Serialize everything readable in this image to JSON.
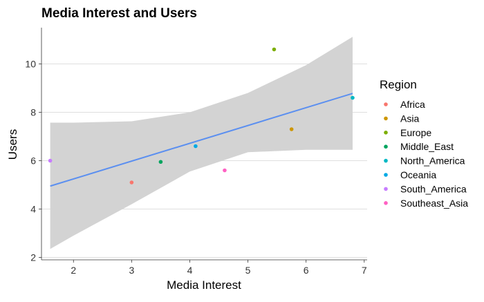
{
  "chart_data": {
    "type": "scatter",
    "title": "Media Interest and Users",
    "xlabel": "Media Interest",
    "ylabel": "Users",
    "xlim": [
      1.45,
      7.05
    ],
    "ylim": [
      1.9,
      11.5
    ],
    "xticks": [
      2,
      3,
      4,
      5,
      6,
      7
    ],
    "yticks": [
      2,
      4,
      6,
      8,
      10
    ],
    "grid": true,
    "legend_title": "Region",
    "legend_position": "right",
    "series": [
      {
        "name": "Africa",
        "color": "#F8766D",
        "points": [
          [
            3.0,
            5.1
          ]
        ]
      },
      {
        "name": "Asia",
        "color": "#CD9600",
        "points": [
          [
            5.75,
            7.3
          ]
        ]
      },
      {
        "name": "Europe",
        "color": "#7CAE00",
        "points": [
          [
            5.45,
            10.6
          ]
        ]
      },
      {
        "name": "Middle_East",
        "color": "#00A45E",
        "points": [
          [
            3.5,
            5.95
          ]
        ]
      },
      {
        "name": "North_America",
        "color": "#00B8C4",
        "points": [
          [
            6.8,
            8.6
          ]
        ]
      },
      {
        "name": "Oceania",
        "color": "#00A9E4",
        "points": [
          [
            4.1,
            6.6
          ]
        ]
      },
      {
        "name": "South_America",
        "color": "#C77CFF",
        "points": [
          [
            1.6,
            6.0
          ]
        ]
      },
      {
        "name": "Southeast_Asia",
        "color": "#FF61C3",
        "points": [
          [
            4.6,
            5.6
          ]
        ]
      }
    ],
    "trend_line": {
      "color": "#5B8FF0",
      "points": [
        [
          1.6,
          4.95
        ],
        [
          6.8,
          8.78
        ]
      ]
    },
    "confidence_band": {
      "color": "#D3D3D3",
      "upper": [
        [
          1.6,
          7.57
        ],
        [
          2.0,
          7.57
        ],
        [
          3.0,
          7.63
        ],
        [
          4.0,
          8.0
        ],
        [
          5.0,
          8.8
        ],
        [
          6.0,
          9.95
        ],
        [
          6.8,
          11.12
        ]
      ],
      "lower": [
        [
          1.6,
          2.35
        ],
        [
          2.0,
          2.9
        ],
        [
          3.0,
          4.2
        ],
        [
          4.0,
          5.55
        ],
        [
          5.0,
          6.35
        ],
        [
          6.0,
          6.45
        ],
        [
          6.8,
          6.45
        ]
      ]
    }
  }
}
